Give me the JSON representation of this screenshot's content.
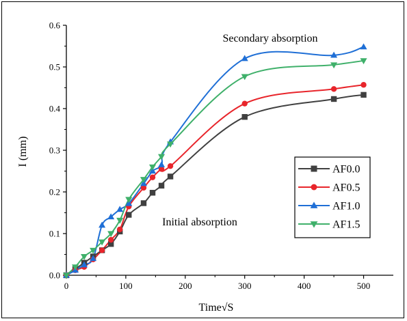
{
  "chart_data": {
    "type": "line",
    "title": "",
    "xlabel": "Time√S",
    "ylabel": "I (mm)",
    "xlim": [
      0,
      550
    ],
    "ylim": [
      0,
      0.6
    ],
    "x_ticks": [
      "0",
      "100",
      "200",
      "300",
      "400",
      "500"
    ],
    "y_ticks": [
      "0.0",
      "0.1",
      "0.2",
      "0.3",
      "0.4",
      "0.5",
      "0.6"
    ],
    "grid": false,
    "legend_position": "right-center",
    "annotations": [
      "Secondary absorption",
      "Initial absorption"
    ],
    "series": [
      {
        "name": "AF0.0",
        "color": "#404040",
        "marker": "square",
        "x": [
          0,
          15,
          30,
          45,
          60,
          75,
          90,
          105,
          130,
          145,
          160,
          175,
          300,
          450,
          500
        ],
        "y": [
          0,
          0.015,
          0.03,
          0.045,
          0.06,
          0.075,
          0.105,
          0.145,
          0.173,
          0.198,
          0.215,
          0.237,
          0.38,
          0.423,
          0.433
        ]
      },
      {
        "name": "AF0.5",
        "color": "#e8252b",
        "marker": "circle",
        "x": [
          0,
          15,
          30,
          45,
          60,
          75,
          90,
          105,
          130,
          145,
          160,
          175,
          300,
          450,
          500
        ],
        "y": [
          0,
          0.012,
          0.02,
          0.038,
          0.06,
          0.085,
          0.11,
          0.165,
          0.21,
          0.235,
          0.255,
          0.262,
          0.412,
          0.447,
          0.457
        ]
      },
      {
        "name": "AF1.0",
        "color": "#1f6fd6",
        "marker": "triangle-up",
        "x": [
          0,
          15,
          30,
          45,
          60,
          75,
          90,
          105,
          130,
          145,
          160,
          175,
          300,
          450,
          500
        ],
        "y": [
          0,
          0.012,
          0.025,
          0.04,
          0.12,
          0.14,
          0.158,
          0.172,
          0.22,
          0.25,
          0.265,
          0.32,
          0.52,
          0.528,
          0.548
        ]
      },
      {
        "name": "AF1.5",
        "color": "#3fb06a",
        "marker": "triangle-down",
        "x": [
          0,
          15,
          30,
          45,
          60,
          75,
          90,
          105,
          130,
          145,
          160,
          175,
          300,
          450,
          500
        ],
        "y": [
          0,
          0.02,
          0.045,
          0.06,
          0.08,
          0.1,
          0.132,
          0.182,
          0.23,
          0.26,
          0.285,
          0.315,
          0.477,
          0.505,
          0.515
        ]
      }
    ]
  }
}
